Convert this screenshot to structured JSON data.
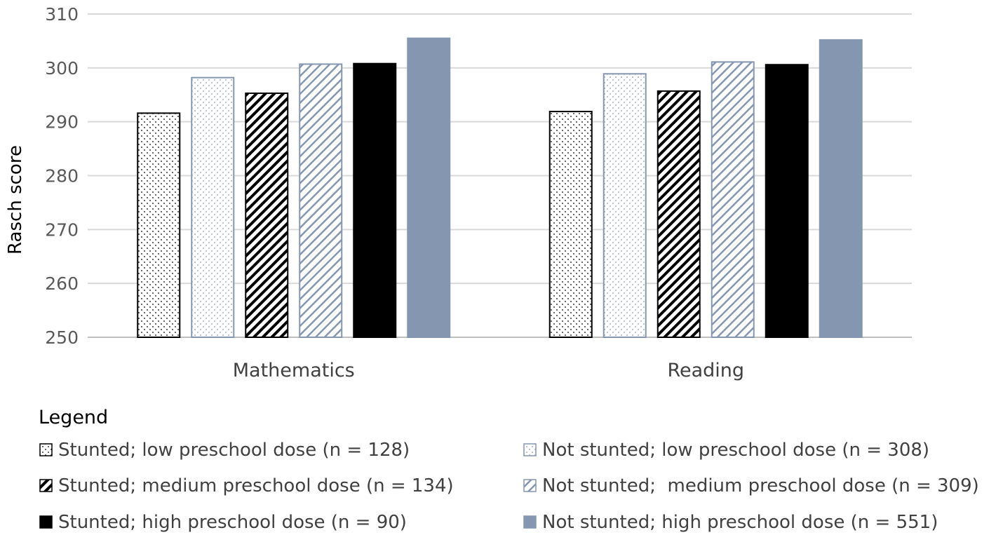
{
  "chart_data": {
    "type": "bar",
    "title": "",
    "xlabel": "",
    "ylabel": "Rasch score",
    "ylim": [
      250,
      310
    ],
    "yticks": [
      250,
      260,
      270,
      280,
      290,
      300,
      310
    ],
    "grid": true,
    "categories": [
      "Mathematics",
      "Reading"
    ],
    "series": [
      {
        "name": "Stunted; low preschool dose (n = 128)",
        "values": [
          291.6,
          291.9
        ],
        "pattern": "dots",
        "fill": "#ffffff",
        "stroke": "#000000"
      },
      {
        "name": "Not stunted; low preschool dose (n = 308)",
        "values": [
          298.2,
          298.9
        ],
        "pattern": "dots-light",
        "fill": "#ffffff",
        "stroke": "#8596b0"
      },
      {
        "name": "Stunted; medium preschool dose (n = 134)",
        "values": [
          295.3,
          295.7
        ],
        "pattern": "hatch",
        "fill": "#ffffff",
        "stroke": "#000000"
      },
      {
        "name": "Not stunted;  medium preschool dose (n = 309)",
        "values": [
          300.7,
          301.1
        ],
        "pattern": "hatch-light",
        "fill": "#ffffff",
        "stroke": "#8596b0"
      },
      {
        "name": "Stunted; high preschool dose (n = 90)",
        "values": [
          300.8,
          300.6
        ],
        "pattern": "solid",
        "fill": "#000000",
        "stroke": "#000000"
      },
      {
        "name": "Not stunted; high preschool dose (n = 551)",
        "values": [
          305.5,
          305.2
        ],
        "pattern": "solid",
        "fill": "#8596b0",
        "stroke": "#8596b0"
      }
    ]
  },
  "legend": {
    "title": "Legend"
  }
}
